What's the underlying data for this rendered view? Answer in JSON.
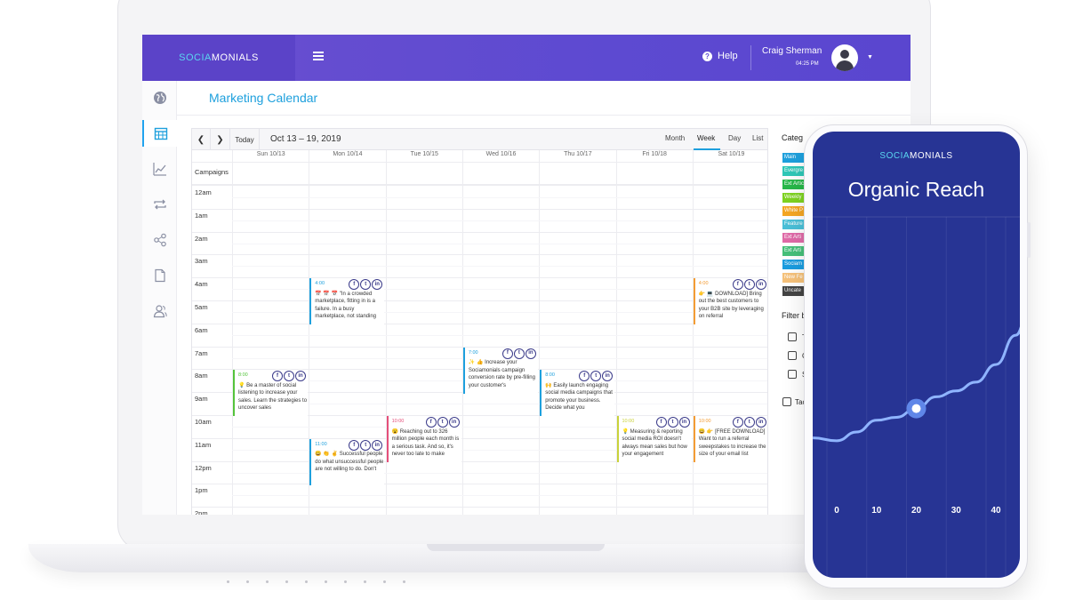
{
  "app": {
    "brand_part1": "SOCIA",
    "brand_part2": "MONIALS",
    "help_label": "Help",
    "user_name": "Craig Sherman",
    "user_time": "04:25 PM",
    "page_title": "Marketing Calendar"
  },
  "calendar": {
    "today_label": "Today",
    "date_range": "Oct 13 – 19, 2019",
    "views": [
      "Month",
      "Week",
      "Day",
      "List"
    ],
    "active_view": "Week",
    "days": [
      "Sun 10/13",
      "Mon 10/14",
      "Tue 10/15",
      "Wed 10/16",
      "Thu 10/17",
      "Fri 10/18",
      "Sat 10/19"
    ],
    "campaigns_label": "Campaigns",
    "hours": [
      "12am",
      "1am",
      "2am",
      "3am",
      "4am",
      "5am",
      "6am",
      "7am",
      "8am",
      "9am",
      "10am",
      "11am",
      "12pm",
      "1pm",
      "2pm"
    ],
    "events": [
      {
        "day": 1,
        "hour": 4,
        "time": "4:00",
        "color": "#1ea0dd",
        "text": "📅 📅 📅 \"In a crowded marketplace, fitting in is a failure. In a busy marketplace, not standing"
      },
      {
        "day": 6,
        "hour": 4,
        "time": "4:00",
        "color": "#f39c34",
        "text": "👉 💻 DOWNLOAD] Bring out the best customers to your B2B site by leveraging on referral"
      },
      {
        "day": 3,
        "hour": 7,
        "time": "7:00",
        "color": "#1ea0dd",
        "text": "✨ 👍 Increase your Sociamonials campaign conversion rate by pre-filling your customer's"
      },
      {
        "day": 0,
        "hour": 8,
        "time": "8:00",
        "color": "#55c43b",
        "text": "💡 Be a master of social listening to increase your sales. Learn the strategies to uncover sales"
      },
      {
        "day": 4,
        "hour": 8,
        "time": "8:00",
        "color": "#1ea0dd",
        "text": "🙌 Easily launch engaging social media campaigns that promote your business. Decide what you"
      },
      {
        "day": 2,
        "hour": 10,
        "time": "10:00",
        "color": "#e54f7a",
        "text": "😮 Reaching out to 326 million people each month is a serious task. And so, it's never too late to make"
      },
      {
        "day": 5,
        "hour": 10,
        "time": "10:00",
        "color": "#c9d23a",
        "text": "💡 Measuring & reporting social media ROI doesn't always mean sales but how your engagement"
      },
      {
        "day": 6,
        "hour": 10,
        "time": "10:00",
        "color": "#f39c34",
        "text": "😀 👉 [FREE DOWNLOAD] Want to run a referral sweepstakes to increase the size of your email list"
      },
      {
        "day": 1,
        "hour": 11,
        "time": "11:00",
        "color": "#1ea0dd",
        "text": "😀 👏 ✌ Successful people do what unsuccessful people are not willing to do. Don't"
      }
    ]
  },
  "categories": {
    "title": "Categ",
    "items": [
      {
        "label": "Main",
        "color": "#1ea0dd"
      },
      {
        "label": "Evergre",
        "color": "#2fc8b8"
      },
      {
        "label": "Ext Artic",
        "color": "#27b84a"
      },
      {
        "label": "Weekly",
        "color": "#7ed321"
      },
      {
        "label": "White P",
        "color": "#f5a623"
      },
      {
        "label": "Feature",
        "color": "#4ac0d8"
      },
      {
        "label": "Ext Arti",
        "color": "#e06aa8"
      },
      {
        "label": "Ext Arti",
        "color": "#46c07a"
      },
      {
        "label": "Sociam",
        "color": "#1b9de0"
      },
      {
        "label": "New Fe",
        "color": "#f6c27a"
      },
      {
        "label": "Uncate",
        "color": "#444444"
      }
    ]
  },
  "filters": {
    "title": "Filter b",
    "items": [
      "Ty",
      "C",
      "S"
    ],
    "extra": "Tac"
  },
  "phone": {
    "brand_part1": "SOCIA",
    "brand_part2": "MONIALS",
    "title": "Organic Reach"
  },
  "chart_data": {
    "type": "line",
    "title": "Organic Reach",
    "x_ticks": [
      "0",
      "10",
      "20",
      "30",
      "40"
    ],
    "xlim": [
      0,
      48
    ],
    "ylim": [
      0,
      100
    ],
    "grid": true,
    "highlight_x": 20,
    "series": [
      {
        "x": [
          -6,
          0,
          5,
          10,
          15,
          20,
          25,
          30,
          35,
          40,
          45,
          48
        ],
        "y": [
          38,
          37,
          40,
          44,
          45,
          48,
          52,
          54,
          57,
          63,
          73,
          80
        ]
      }
    ]
  }
}
